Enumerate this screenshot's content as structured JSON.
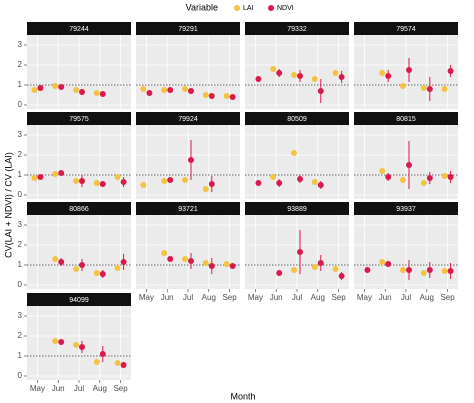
{
  "chart_data": {
    "type": "dot",
    "legend_title": "Variable",
    "y_label": "CV(LAI + NDVI) / CV (LAI)",
    "x_label": "Month",
    "categories": [
      "May",
      "Jun",
      "Jul",
      "Aug",
      "Sep"
    ],
    "ylim": [
      -0.2,
      3.5
    ],
    "yticks": [
      0,
      1,
      2,
      3
    ],
    "hline": 1,
    "grid": true,
    "series": [
      {
        "name": "LAI",
        "color": "#f5c242"
      },
      {
        "name": "NDVI",
        "color": "#d81b4e"
      }
    ],
    "panels": [
      {
        "title": "79244",
        "values": [
          [
            0.75,
            0.95,
            0.75,
            0.6,
            null
          ],
          [
            0.85,
            0.9,
            0.65,
            0.55,
            null
          ]
        ],
        "errors": [
          [
            null,
            null,
            null,
            null,
            null
          ],
          [
            0.1,
            0.1,
            0.15,
            0.1,
            null
          ]
        ]
      },
      {
        "title": "79291",
        "values": [
          [
            0.8,
            0.75,
            0.8,
            0.5,
            0.45
          ],
          [
            0.6,
            0.75,
            0.7,
            0.45,
            0.4
          ]
        ],
        "errors": [
          [
            null,
            null,
            null,
            null,
            null
          ],
          [
            null,
            null,
            0.1,
            null,
            null
          ]
        ]
      },
      {
        "title": "79332",
        "values": [
          [
            null,
            1.8,
            1.5,
            1.3,
            1.6
          ],
          [
            1.3,
            1.6,
            1.45,
            0.7,
            1.4
          ]
        ],
        "errors": [
          [
            null,
            null,
            null,
            null,
            null
          ],
          [
            null,
            0.2,
            0.3,
            0.6,
            0.3
          ]
        ]
      },
      {
        "title": "79574",
        "values": [
          [
            null,
            1.6,
            0.95,
            0.85,
            0.8
          ],
          [
            null,
            1.45,
            1.75,
            0.8,
            1.7
          ]
        ],
        "errors": [
          [
            null,
            null,
            null,
            null,
            null
          ],
          [
            null,
            0.3,
            0.6,
            0.6,
            0.3
          ]
        ]
      },
      {
        "title": "79575",
        "values": [
          [
            0.85,
            1.05,
            0.7,
            0.6,
            0.9
          ],
          [
            0.9,
            1.1,
            0.7,
            0.55,
            0.65
          ]
        ],
        "errors": [
          [
            null,
            null,
            null,
            null,
            null
          ],
          [
            null,
            0.1,
            0.3,
            null,
            0.25
          ]
        ]
      },
      {
        "title": "79924",
        "values": [
          [
            0.5,
            0.7,
            0.75,
            0.3,
            null
          ],
          [
            null,
            0.75,
            1.75,
            0.55,
            null
          ]
        ],
        "errors": [
          [
            null,
            null,
            null,
            null,
            null
          ],
          [
            null,
            null,
            1.0,
            0.4,
            null
          ]
        ]
      },
      {
        "title": "80509",
        "values": [
          [
            null,
            0.9,
            2.1,
            0.65,
            null
          ],
          [
            0.6,
            0.6,
            0.8,
            0.5,
            null
          ]
        ],
        "errors": [
          [
            null,
            null,
            null,
            null,
            null
          ],
          [
            null,
            0.2,
            0.2,
            0.2,
            null
          ]
        ]
      },
      {
        "title": "80815",
        "values": [
          [
            null,
            1.2,
            0.75,
            0.6,
            0.95
          ],
          [
            null,
            0.9,
            1.5,
            0.85,
            0.9
          ]
        ],
        "errors": [
          [
            null,
            null,
            null,
            null,
            null
          ],
          [
            null,
            0.2,
            1.2,
            0.3,
            0.3
          ]
        ]
      },
      {
        "title": "80866",
        "values": [
          [
            null,
            1.3,
            0.8,
            0.6,
            0.85
          ],
          [
            null,
            1.15,
            1.0,
            0.55,
            1.15
          ]
        ],
        "errors": [
          [
            null,
            null,
            null,
            null,
            null
          ],
          [
            null,
            0.2,
            0.3,
            0.2,
            0.4
          ]
        ]
      },
      {
        "title": "93721",
        "values": [
          [
            null,
            1.6,
            1.3,
            1.1,
            1.05
          ],
          [
            null,
            1.3,
            1.2,
            0.95,
            0.95
          ]
        ],
        "errors": [
          [
            null,
            null,
            null,
            null,
            null
          ],
          [
            null,
            null,
            0.4,
            0.4,
            0.1
          ]
        ]
      },
      {
        "title": "93889",
        "values": [
          [
            null,
            null,
            0.75,
            0.9,
            0.8
          ],
          [
            null,
            0.6,
            1.65,
            1.1,
            0.45
          ]
        ],
        "errors": [
          [
            null,
            null,
            null,
            null,
            null
          ],
          [
            null,
            null,
            1.1,
            0.4,
            0.2
          ]
        ]
      },
      {
        "title": "93937",
        "values": [
          [
            null,
            1.15,
            0.75,
            0.6,
            0.7
          ],
          [
            0.75,
            1.05,
            0.75,
            0.75,
            0.7
          ]
        ],
        "errors": [
          [
            null,
            null,
            null,
            null,
            null
          ],
          [
            null,
            null,
            0.5,
            0.4,
            0.4
          ]
        ]
      },
      {
        "title": "94099",
        "values": [
          [
            null,
            1.75,
            1.55,
            0.7,
            0.65
          ],
          [
            null,
            1.7,
            1.45,
            1.1,
            0.55
          ]
        ],
        "errors": [
          [
            null,
            null,
            null,
            null,
            null
          ],
          [
            null,
            null,
            0.3,
            0.4,
            0.1
          ]
        ]
      }
    ]
  }
}
